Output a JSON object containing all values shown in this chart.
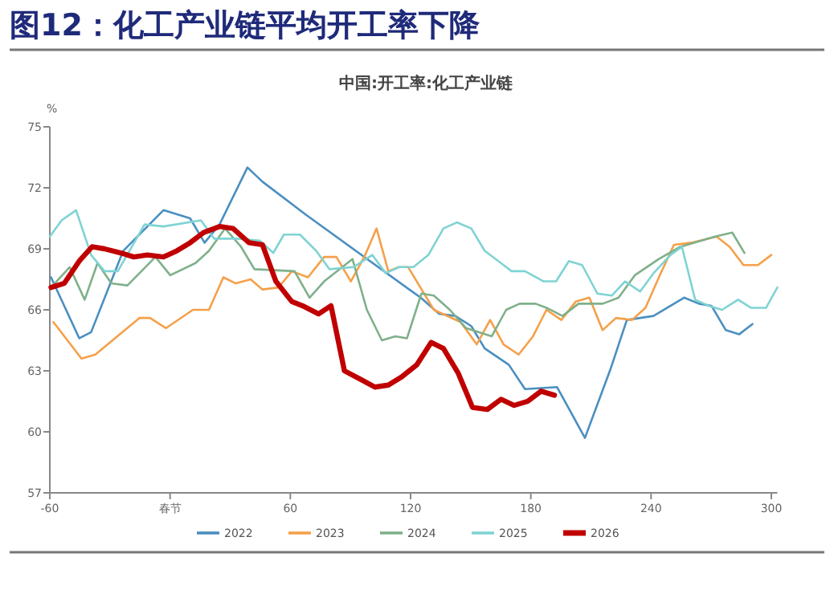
{
  "chart_data": {
    "type": "line",
    "title": "图12：化工产业链平均开工率下降",
    "subtitle": "中国:开工率:化工产业链",
    "ylabel": "%",
    "xlim": [
      -60,
      303
    ],
    "xticks": [
      -60,
      {
        "value": 0,
        "label": "春节"
      },
      60,
      120,
      180,
      240,
      300
    ],
    "ylim": [
      57,
      75
    ],
    "yticks": [
      57,
      60,
      63,
      66,
      69,
      72,
      75
    ],
    "grid": false,
    "legend": "bottom",
    "marker": "none",
    "line_style": "solid",
    "series": [
      {
        "name": "2022",
        "color": "#4a8fc0",
        "x": [
          -59.4,
          -45.3,
          -39.4,
          -23.4,
          -3.3,
          10,
          17.2,
          24.7,
          38.6,
          46.1,
          67.5,
          125,
          134.3,
          142.3,
          150.3,
          157,
          169,
          177.1,
          193.1,
          207,
          219.8,
          227.9,
          241.2,
          256.5,
          263.9,
          270.1,
          277.3,
          284,
          290.6
        ],
        "values": [
          67.6,
          64.6,
          64.9,
          68.9,
          70.9,
          70.5,
          69.3,
          70.2,
          73.0,
          72.3,
          70.7,
          66.6,
          65.8,
          65.7,
          65.2,
          64.1,
          63.3,
          62.1,
          62.2,
          59.7,
          63.1,
          65.5,
          65.7,
          66.6,
          66.3,
          66.2,
          65.0,
          64.8,
          65.3
        ]
      },
      {
        "name": "2023",
        "color": "#f5a04a",
        "x": [
          -58.2,
          -44.2,
          -37.3,
          -15.3,
          -10,
          -2,
          11.4,
          19.4,
          26.6,
          32.8,
          40.2,
          46.1,
          54.1,
          60.8,
          68.8,
          76.9,
          83,
          90.2,
          96.9,
          103,
          108.9,
          114.2,
          118.8,
          131.6,
          145,
          153,
          159.7,
          166.4,
          173.9,
          181.1,
          187.8,
          195.2,
          202.4,
          209.2,
          215.8,
          222.5,
          230.5,
          237.2,
          243.9,
          251.4,
          260,
          272.7,
          279.2,
          286.1,
          293.3,
          300
        ],
        "values": [
          65.4,
          63.6,
          63.8,
          65.6,
          65.6,
          65.1,
          66.0,
          66.0,
          67.6,
          67.3,
          67.5,
          67.0,
          67.1,
          67.9,
          67.6,
          68.6,
          68.6,
          67.4,
          68.6,
          70.0,
          67.9,
          68.1,
          68.1,
          66.0,
          65.4,
          64.3,
          65.5,
          64.3,
          63.8,
          64.7,
          66.0,
          65.5,
          66.4,
          66.6,
          65.0,
          65.6,
          65.5,
          66.1,
          67.6,
          69.2,
          69.3,
          69.6,
          69.1,
          68.2,
          68.2,
          68.7
        ]
      },
      {
        "name": "2024",
        "color": "#7fb08a",
        "x": [
          -59.4,
          -50.1,
          -42.6,
          -36.2,
          -29.3,
          -21.3,
          -7.3,
          0.1,
          12.7,
          19.4,
          27.4,
          35.4,
          42.1,
          62.1,
          69.6,
          76.9,
          91,
          98.2,
          105.7,
          112.4,
          118.2,
          125.4,
          131.6,
          139.6,
          147.7,
          160.5,
          167.7,
          174.4,
          182.4,
          187.8,
          195.8,
          203.8,
          215.8,
          223.8,
          231.9,
          243.9,
          254.6,
          271.9,
          280.5,
          286.6
        ],
        "values": [
          67.1,
          68.1,
          66.5,
          68.3,
          67.3,
          67.2,
          68.6,
          67.7,
          68.3,
          68.9,
          70.0,
          69.1,
          68.0,
          67.9,
          66.6,
          67.4,
          68.5,
          66.0,
          64.5,
          64.7,
          64.6,
          66.8,
          66.7,
          66.0,
          65.1,
          64.7,
          66.0,
          66.3,
          66.3,
          66.1,
          65.7,
          66.3,
          66.3,
          66.6,
          67.7,
          68.5,
          69.1,
          69.6,
          69.8,
          68.8
        ]
      },
      {
        "name": "2025",
        "color": "#7fd3d3",
        "x": [
          -60,
          -54.1,
          -46.9,
          -39.4,
          -32.7,
          -26.1,
          -12.7,
          -3.3,
          15.4,
          22,
          34.1,
          44.8,
          51.5,
          56.8,
          64.8,
          72.9,
          79.5,
          91.5,
          100.9,
          107.6,
          114.2,
          121.4,
          128.9,
          136.4,
          143.1,
          150.3,
          157,
          165.1,
          170.4,
          177.1,
          186.4,
          192.6,
          199,
          205.6,
          213.2,
          220.4,
          227,
          234.5,
          241.2,
          249.7,
          255.4,
          262,
          268.7,
          275.4,
          283.4,
          289.8,
          297.4,
          303
        ],
        "values": [
          69.6,
          70.4,
          70.9,
          68.7,
          67.9,
          67.9,
          70.2,
          70.1,
          70.4,
          69.5,
          69.5,
          69.4,
          68.8,
          69.7,
          69.7,
          68.9,
          68.0,
          68.1,
          68.7,
          67.8,
          68.1,
          68.1,
          68.7,
          70.0,
          70.3,
          70.0,
          68.9,
          68.3,
          67.9,
          67.9,
          67.4,
          67.4,
          68.4,
          68.2,
          66.8,
          66.7,
          67.4,
          66.9,
          67.8,
          68.7,
          69.1,
          66.5,
          66.2,
          66.0,
          66.5,
          66.1,
          66.1,
          67.1
        ]
      },
      {
        "name": "2026",
        "color": "#c00000",
        "x": [
          -59.4,
          -52.8,
          -45.3,
          -38.9,
          -32.7,
          -24.7,
          -18.1,
          -11.3,
          -3.3,
          3.3,
          10,
          16.7,
          24.7,
          31.4,
          39.4,
          46.1,
          52.8,
          60.8,
          66.1,
          74.1,
          80.3,
          87,
          94.7,
          102.2,
          108.9,
          115.6,
          123.1,
          130.3,
          136.4,
          143.7,
          150.9,
          158.3,
          165.1,
          171.7,
          178.4,
          185.1,
          191.8
        ],
        "values": [
          67.1,
          67.3,
          68.4,
          69.1,
          69.0,
          68.8,
          68.6,
          68.7,
          68.6,
          68.9,
          69.3,
          69.8,
          70.1,
          70.0,
          69.3,
          69.2,
          67.4,
          66.4,
          66.2,
          65.8,
          66.2,
          63.0,
          62.6,
          62.2,
          62.3,
          62.7,
          63.3,
          64.4,
          64.1,
          62.9,
          61.2,
          61.1,
          61.6,
          61.3,
          61.5,
          62.0,
          61.8
        ]
      }
    ]
  }
}
